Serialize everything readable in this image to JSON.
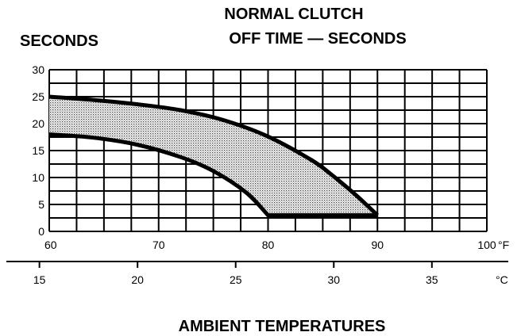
{
  "chart_data": {
    "type": "area",
    "title_line1": "NORMAL CLUTCH",
    "title_line2": "OFF TIME — SECONDS",
    "ylabel": "SECONDS",
    "xlabel": "AMBIENT TEMPERATURES",
    "x_unit": "°F",
    "x2_unit": "°C",
    "xlim": [
      60,
      100
    ],
    "ylim": [
      0,
      30
    ],
    "x2lim": [
      15.5,
      37.8
    ],
    "grid": true,
    "y_ticks": [
      "30",
      "25",
      "20",
      "15",
      "10",
      "5",
      "0"
    ],
    "y_tick_values": [
      30,
      25,
      20,
      15,
      10,
      5,
      0
    ],
    "x_ticks": [
      "60",
      "70",
      "80",
      "90",
      "100"
    ],
    "x_tick_values": [
      60,
      70,
      80,
      90,
      100
    ],
    "x2_ticks": [
      "15",
      "20",
      "25",
      "30",
      "35"
    ],
    "x2_tick_values": [
      15,
      20,
      25,
      30,
      35
    ],
    "series": [
      {
        "upper": {
          "x": [
            60,
            64,
            68,
            72,
            76,
            80,
            84,
            86,
            88,
            90
          ],
          "y": [
            25,
            24.4,
            23.6,
            22.5,
            20.6,
            17.6,
            13.2,
            10.2,
            6.8,
            3
          ]
        },
        "lower": {
          "x": [
            60,
            64,
            68,
            72,
            75,
            78,
            80,
            90
          ],
          "y": [
            18,
            17.4,
            16.1,
            13.8,
            11.2,
            7.2,
            3,
            3
          ]
        }
      }
    ]
  }
}
